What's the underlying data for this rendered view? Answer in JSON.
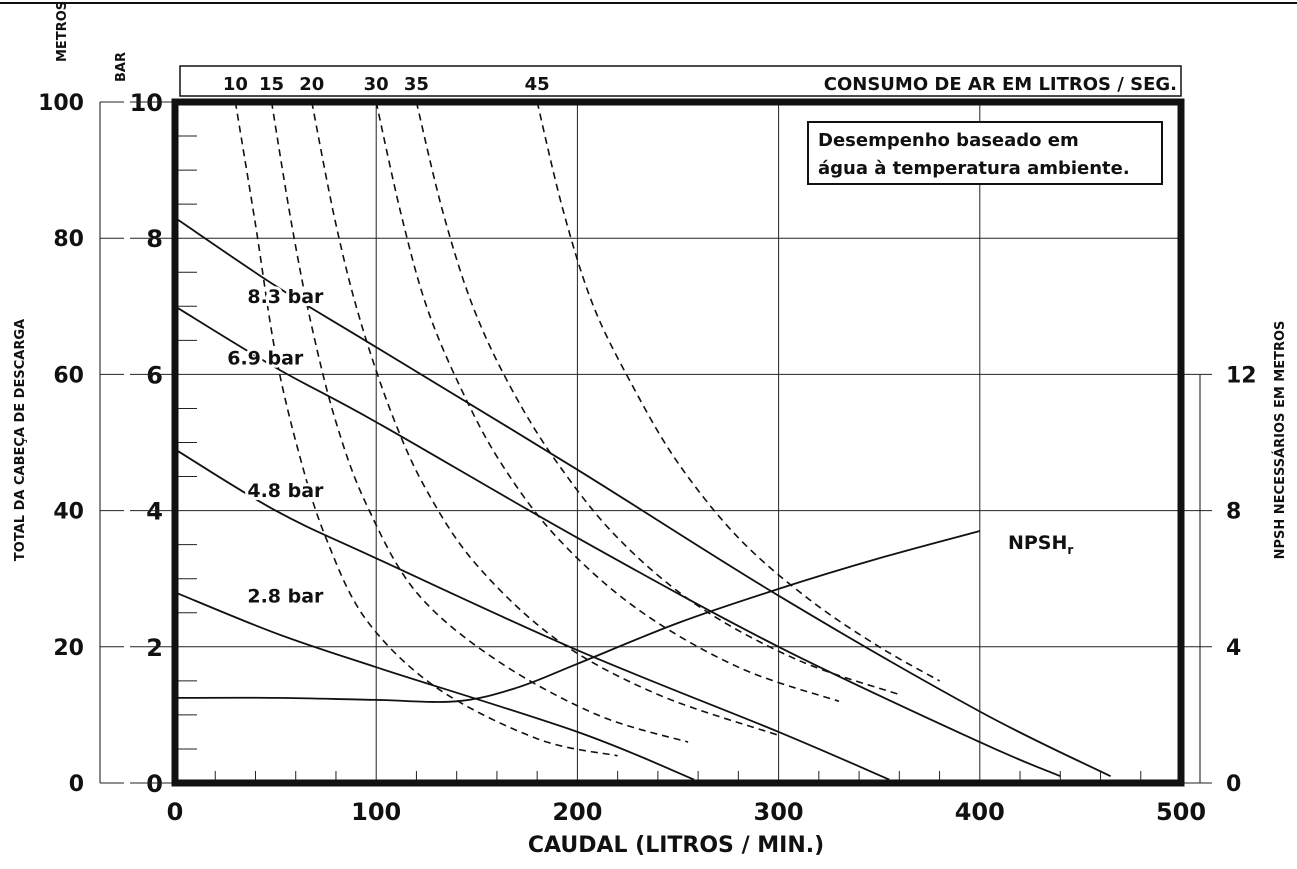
{
  "chart_data": {
    "type": "line",
    "xlabel": "CAUDAL (LITROS / MIN.)",
    "xlim": [
      0,
      500
    ],
    "x_ticks": [
      "0",
      "100",
      "200",
      "300",
      "400",
      "500"
    ],
    "ylabel_left": "TOTAL DA CABEÇA DE DESCARGA",
    "unit_meters": "METROS",
    "unit_bar": "BAR",
    "ylim_bar": [
      0,
      10
    ],
    "bar_ticks": [
      "0",
      "2",
      "4",
      "6",
      "8",
      "10"
    ],
    "meter_ticks": [
      "0",
      "20",
      "40",
      "60",
      "80",
      "100"
    ],
    "ylabel_right": "NPSH NECESSÁRIOS EM METROS",
    "npsh_ticks": [
      "0",
      "4",
      "8",
      "12"
    ],
    "grid": true,
    "air_title": "CONSUMO DE AR EM LITROS / SEG.",
    "air_ticks": [
      {
        "label": "10",
        "x": 30
      },
      {
        "label": "15",
        "x": 48
      },
      {
        "label": "20",
        "x": 68
      },
      {
        "label": "30",
        "x": 100
      },
      {
        "label": "35",
        "x": 120
      },
      {
        "label": "45",
        "x": 180
      }
    ],
    "note_line1": "Desempenho baseado em",
    "note_line2": "água à temperatura ambiente.",
    "pressure_series": [
      {
        "name": "8.3 bar",
        "label_at": [
          30,
          7.15
        ],
        "points": [
          [
            0,
            8.3
          ],
          [
            50,
            7.3
          ],
          [
            100,
            6.4
          ],
          [
            200,
            4.6
          ],
          [
            300,
            2.75
          ],
          [
            400,
            1.05
          ],
          [
            465,
            0.1
          ]
        ]
      },
      {
        "name": "6.9 bar",
        "label_at": [
          20,
          6.25
        ],
        "points": [
          [
            0,
            7.0
          ],
          [
            50,
            6.1
          ],
          [
            100,
            5.3
          ],
          [
            200,
            3.6
          ],
          [
            300,
            2.0
          ],
          [
            400,
            0.6
          ],
          [
            440,
            0.1
          ]
        ]
      },
      {
        "name": "4.8 bar",
        "label_at": [
          30,
          4.3
        ],
        "points": [
          [
            0,
            4.9
          ],
          [
            50,
            4.0
          ],
          [
            100,
            3.3
          ],
          [
            200,
            1.95
          ],
          [
            300,
            0.75
          ],
          [
            355,
            0.05
          ]
        ]
      },
      {
        "name": "2.8 bar",
        "label_at": [
          30,
          2.75
        ],
        "points": [
          [
            0,
            2.8
          ],
          [
            50,
            2.2
          ],
          [
            100,
            1.7
          ],
          [
            200,
            0.75
          ],
          [
            258,
            0.05
          ]
        ]
      }
    ],
    "npsh_series": {
      "name": "NPSHr",
      "label_main": "NPSH",
      "label_sub": "r",
      "label_at": [
        412,
        3.55
      ],
      "points": [
        [
          0,
          1.25
        ],
        [
          50,
          1.25
        ],
        [
          100,
          1.22
        ],
        [
          140,
          1.2
        ],
        [
          170,
          1.4
        ],
        [
          200,
          1.75
        ],
        [
          250,
          2.35
        ],
        [
          300,
          2.85
        ],
        [
          350,
          3.3
        ],
        [
          400,
          3.7
        ]
      ]
    },
    "air_curves": [
      {
        "label": "10",
        "points": [
          [
            30,
            10
          ],
          [
            40,
            8.2
          ],
          [
            50,
            6.3
          ],
          [
            62,
            4.8
          ],
          [
            75,
            3.6
          ],
          [
            95,
            2.4
          ],
          [
            130,
            1.4
          ],
          [
            180,
            0.65
          ],
          [
            220,
            0.4
          ]
        ]
      },
      {
        "label": "15",
        "points": [
          [
            48,
            10
          ],
          [
            58,
            8.2
          ],
          [
            68,
            6.7
          ],
          [
            80,
            5.3
          ],
          [
            95,
            4.1
          ],
          [
            120,
            2.8
          ],
          [
            160,
            1.8
          ],
          [
            210,
            1.0
          ],
          [
            255,
            0.6
          ]
        ]
      },
      {
        "label": "20",
        "points": [
          [
            68,
            10
          ],
          [
            80,
            8.2
          ],
          [
            92,
            6.8
          ],
          [
            108,
            5.4
          ],
          [
            125,
            4.3
          ],
          [
            150,
            3.2
          ],
          [
            190,
            2.1
          ],
          [
            240,
            1.3
          ],
          [
            300,
            0.7
          ]
        ]
      },
      {
        "label": "30",
        "points": [
          [
            100,
            10
          ],
          [
            112,
            8.4
          ],
          [
            125,
            7.0
          ],
          [
            142,
            5.8
          ],
          [
            162,
            4.7
          ],
          [
            190,
            3.6
          ],
          [
            230,
            2.55
          ],
          [
            280,
            1.7
          ],
          [
            330,
            1.2
          ]
        ]
      },
      {
        "label": "35",
        "points": [
          [
            120,
            10
          ],
          [
            133,
            8.4
          ],
          [
            148,
            7.0
          ],
          [
            167,
            5.8
          ],
          [
            190,
            4.7
          ],
          [
            220,
            3.6
          ],
          [
            260,
            2.6
          ],
          [
            310,
            1.8
          ],
          [
            360,
            1.3
          ]
        ]
      },
      {
        "label": "45",
        "points": [
          [
            180,
            10
          ],
          [
            193,
            8.4
          ],
          [
            208,
            7.0
          ],
          [
            228,
            5.8
          ],
          [
            250,
            4.7
          ],
          [
            280,
            3.6
          ],
          [
            315,
            2.7
          ],
          [
            350,
            2.0
          ],
          [
            380,
            1.5
          ]
        ]
      }
    ]
  }
}
